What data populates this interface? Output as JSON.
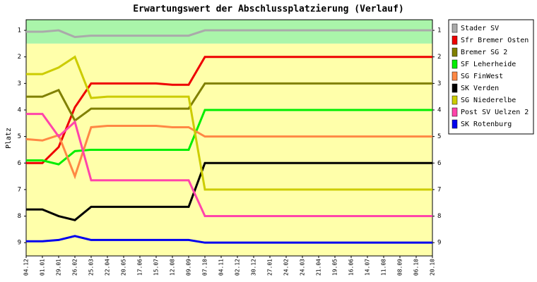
{
  "chart_data": {
    "type": "line",
    "title": "Erwartungswert der Abschlussplatzierung (Verlauf)",
    "y_label": "Platz",
    "y_inverted": true,
    "ylim": [
      0.6,
      9.5
    ],
    "yticks": [
      1,
      2,
      3,
      4,
      5,
      6,
      7,
      8,
      9
    ],
    "bands": [
      {
        "ylim": [
          0.6,
          1.5
        ],
        "color": "#aaf5aa"
      },
      {
        "ylim": [
          1.5,
          9.5
        ],
        "color": "#ffffaa"
      }
    ],
    "legend": "right",
    "categories": [
      "04.12",
      "01.01",
      "29.01",
      "26.02",
      "25.03",
      "22.04",
      "20.05",
      "17.06",
      "15.07",
      "12.08",
      "09.09",
      "07.10",
      "04.11",
      "02.12",
      "30.12",
      "27.01",
      "24.02",
      "24.03",
      "21.04",
      "19.05",
      "16.06",
      "14.07",
      "11.08",
      "08.09",
      "06.10",
      "20.10"
    ],
    "series": [
      {
        "name": "Stader SV",
        "color": "#aaaaaa",
        "values": [
          1.05,
          1.05,
          1.0,
          1.25,
          1.2,
          1.2,
          1.2,
          1.2,
          1.2,
          1.2,
          1.2,
          1.0,
          1.0,
          1.0,
          1.0,
          1.0,
          1.0,
          1.0,
          1.0,
          1.0,
          1.0,
          1.0,
          1.0,
          1.0,
          1.0,
          1.0
        ]
      },
      {
        "name": "Sfr Bremer Osten",
        "color": "#ee0000",
        "values": [
          6.0,
          6.0,
          5.4,
          3.9,
          3.0,
          3.0,
          3.0,
          3.0,
          3.0,
          3.05,
          3.05,
          2.0,
          2.0,
          2.0,
          2.0,
          2.0,
          2.0,
          2.0,
          2.0,
          2.0,
          2.0,
          2.0,
          2.0,
          2.0,
          2.0,
          2.0
        ]
      },
      {
        "name": "Bremer SG 2",
        "color": "#808000",
        "values": [
          3.5,
          3.5,
          3.25,
          4.4,
          3.95,
          3.95,
          3.95,
          3.95,
          3.95,
          3.95,
          3.95,
          3.0,
          3.0,
          3.0,
          3.0,
          3.0,
          3.0,
          3.0,
          3.0,
          3.0,
          3.0,
          3.0,
          3.0,
          3.0,
          3.0,
          3.0
        ]
      },
      {
        "name": "SF Leherheide",
        "color": "#00ee00",
        "values": [
          5.9,
          5.9,
          6.05,
          5.55,
          5.5,
          5.5,
          5.5,
          5.5,
          5.5,
          5.5,
          5.5,
          4.0,
          4.0,
          4.0,
          4.0,
          4.0,
          4.0,
          4.0,
          4.0,
          4.0,
          4.0,
          4.0,
          4.0,
          4.0,
          4.0,
          4.0
        ]
      },
      {
        "name": "SG FinWest",
        "color": "#ff8844",
        "values": [
          5.1,
          5.15,
          4.95,
          6.5,
          4.65,
          4.6,
          4.6,
          4.6,
          4.6,
          4.65,
          4.65,
          5.0,
          5.0,
          5.0,
          5.0,
          5.0,
          5.0,
          5.0,
          5.0,
          5.0,
          5.0,
          5.0,
          5.0,
          5.0,
          5.0,
          5.0
        ]
      },
      {
        "name": "SK Verden",
        "color": "#000000",
        "values": [
          7.75,
          7.75,
          8.0,
          8.15,
          7.65,
          7.65,
          7.65,
          7.65,
          7.65,
          7.65,
          7.65,
          6.0,
          6.0,
          6.0,
          6.0,
          6.0,
          6.0,
          6.0,
          6.0,
          6.0,
          6.0,
          6.0,
          6.0,
          6.0,
          6.0,
          6.0
        ]
      },
      {
        "name": "SG Niederelbe",
        "color": "#cccc00",
        "values": [
          2.65,
          2.65,
          2.4,
          2.0,
          3.55,
          3.5,
          3.5,
          3.5,
          3.5,
          3.5,
          3.5,
          7.0,
          7.0,
          7.0,
          7.0,
          7.0,
          7.0,
          7.0,
          7.0,
          7.0,
          7.0,
          7.0,
          7.0,
          7.0,
          7.0,
          7.0
        ]
      },
      {
        "name": "Post SV Uelzen 2",
        "color": "#ff44aa",
        "values": [
          4.15,
          4.15,
          5.0,
          4.45,
          6.65,
          6.65,
          6.65,
          6.65,
          6.65,
          6.65,
          6.65,
          8.0,
          8.0,
          8.0,
          8.0,
          8.0,
          8.0,
          8.0,
          8.0,
          8.0,
          8.0,
          8.0,
          8.0,
          8.0,
          8.0,
          8.0
        ]
      },
      {
        "name": "SK Rotenburg",
        "color": "#0000ee",
        "values": [
          8.95,
          8.95,
          8.9,
          8.75,
          8.9,
          8.9,
          8.9,
          8.9,
          8.9,
          8.9,
          8.9,
          9.0,
          9.0,
          9.0,
          9.0,
          9.0,
          9.0,
          9.0,
          9.0,
          9.0,
          9.0,
          9.0,
          9.0,
          9.0,
          9.0,
          9.0
        ]
      }
    ]
  }
}
